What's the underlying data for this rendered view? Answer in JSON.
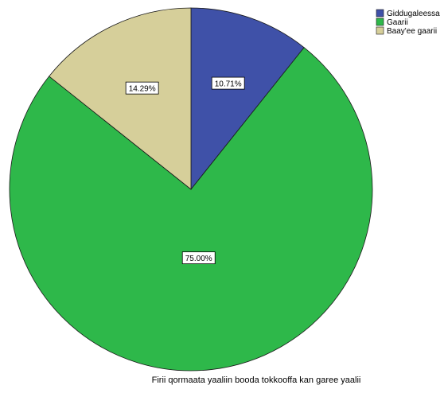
{
  "chart_data": {
    "type": "pie",
    "title": "",
    "caption": "Firii qormaata yaaliin booda tokkooffa kan garee yaalii",
    "legend_position": "top-right",
    "slices": [
      {
        "label": "Giddugaleessa",
        "value": 10.71,
        "value_label": "10.71%",
        "color": "#3f51a8"
      },
      {
        "label": "Gaarii",
        "value": 75.0,
        "value_label": "75.00%",
        "color": "#2eb84a"
      },
      {
        "label": "Baay'ee gaarii",
        "value": 14.29,
        "value_label": "14.29%",
        "color": "#d6cf9a"
      }
    ]
  }
}
